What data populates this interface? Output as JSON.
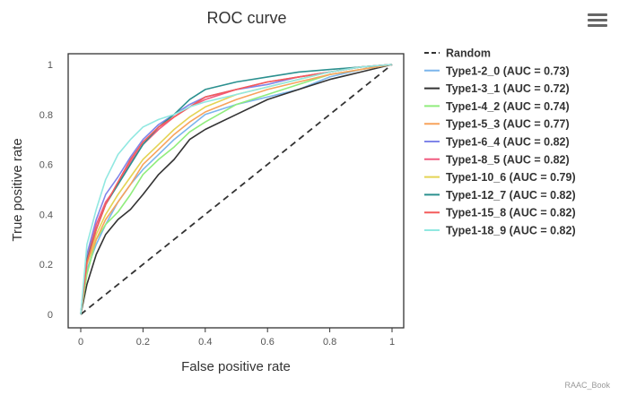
{
  "chart_data": {
    "type": "line",
    "title": "ROC curve",
    "xlabel": "False positive rate",
    "ylabel": "True positive rate",
    "xlim": [
      0,
      1
    ],
    "ylim": [
      0,
      1
    ],
    "xticks": [
      "0",
      "0.2",
      "0.4",
      "0.6",
      "0.8",
      "1"
    ],
    "yticks": [
      "0",
      "0.2",
      "0.4",
      "0.6",
      "0.8",
      "1"
    ],
    "legend_position": "right",
    "series": [
      {
        "name": "Random",
        "color": "#333333",
        "dash": true,
        "points": [
          [
            0,
            0
          ],
          [
            1,
            1
          ]
        ]
      },
      {
        "name": "Type1-2_0 (AUC = 0.73)",
        "color": "#7cb5ec",
        "points": [
          [
            0,
            0
          ],
          [
            0.02,
            0.18
          ],
          [
            0.05,
            0.28
          ],
          [
            0.08,
            0.36
          ],
          [
            0.12,
            0.45
          ],
          [
            0.16,
            0.52
          ],
          [
            0.2,
            0.58
          ],
          [
            0.25,
            0.64
          ],
          [
            0.3,
            0.7
          ],
          [
            0.35,
            0.75
          ],
          [
            0.4,
            0.8
          ],
          [
            0.5,
            0.84
          ],
          [
            0.6,
            0.87
          ],
          [
            0.7,
            0.9
          ],
          [
            0.8,
            0.95
          ],
          [
            0.9,
            0.98
          ],
          [
            1,
            1
          ]
        ]
      },
      {
        "name": "Type1-3_1 (AUC = 0.72)",
        "color": "#333333",
        "points": [
          [
            0,
            0
          ],
          [
            0.02,
            0.12
          ],
          [
            0.05,
            0.24
          ],
          [
            0.08,
            0.32
          ],
          [
            0.12,
            0.38
          ],
          [
            0.16,
            0.42
          ],
          [
            0.2,
            0.48
          ],
          [
            0.25,
            0.56
          ],
          [
            0.3,
            0.62
          ],
          [
            0.35,
            0.7
          ],
          [
            0.4,
            0.74
          ],
          [
            0.5,
            0.8
          ],
          [
            0.6,
            0.86
          ],
          [
            0.7,
            0.9
          ],
          [
            0.8,
            0.94
          ],
          [
            0.9,
            0.97
          ],
          [
            1,
            1
          ]
        ]
      },
      {
        "name": "Type1-4_2 (AUC = 0.74)",
        "color": "#90ed7d",
        "points": [
          [
            0,
            0
          ],
          [
            0.02,
            0.16
          ],
          [
            0.05,
            0.3
          ],
          [
            0.08,
            0.36
          ],
          [
            0.12,
            0.41
          ],
          [
            0.16,
            0.48
          ],
          [
            0.2,
            0.56
          ],
          [
            0.25,
            0.62
          ],
          [
            0.3,
            0.67
          ],
          [
            0.35,
            0.73
          ],
          [
            0.4,
            0.77
          ],
          [
            0.5,
            0.84
          ],
          [
            0.6,
            0.88
          ],
          [
            0.7,
            0.92
          ],
          [
            0.8,
            0.96
          ],
          [
            0.9,
            0.98
          ],
          [
            1,
            1
          ]
        ]
      },
      {
        "name": "Type1-5_3 (AUC = 0.77)",
        "color": "#f7a35c",
        "points": [
          [
            0,
            0
          ],
          [
            0.02,
            0.2
          ],
          [
            0.05,
            0.3
          ],
          [
            0.08,
            0.38
          ],
          [
            0.12,
            0.45
          ],
          [
            0.16,
            0.52
          ],
          [
            0.2,
            0.6
          ],
          [
            0.25,
            0.66
          ],
          [
            0.3,
            0.72
          ],
          [
            0.35,
            0.77
          ],
          [
            0.4,
            0.81
          ],
          [
            0.5,
            0.86
          ],
          [
            0.6,
            0.9
          ],
          [
            0.7,
            0.93
          ],
          [
            0.8,
            0.96
          ],
          [
            0.9,
            0.98
          ],
          [
            1,
            1
          ]
        ]
      },
      {
        "name": "Type1-6_4 (AUC = 0.82)",
        "color": "#8085e9",
        "points": [
          [
            0,
            0
          ],
          [
            0.02,
            0.24
          ],
          [
            0.05,
            0.38
          ],
          [
            0.08,
            0.48
          ],
          [
            0.12,
            0.55
          ],
          [
            0.16,
            0.63
          ],
          [
            0.2,
            0.7
          ],
          [
            0.25,
            0.76
          ],
          [
            0.3,
            0.8
          ],
          [
            0.35,
            0.84
          ],
          [
            0.4,
            0.87
          ],
          [
            0.5,
            0.9
          ],
          [
            0.6,
            0.92
          ],
          [
            0.7,
            0.95
          ],
          [
            0.8,
            0.97
          ],
          [
            0.9,
            0.99
          ],
          [
            1,
            1
          ]
        ]
      },
      {
        "name": "Type1-8_5 (AUC = 0.82)",
        "color": "#f15c80",
        "points": [
          [
            0,
            0
          ],
          [
            0.02,
            0.22
          ],
          [
            0.05,
            0.36
          ],
          [
            0.08,
            0.45
          ],
          [
            0.12,
            0.52
          ],
          [
            0.16,
            0.61
          ],
          [
            0.2,
            0.68
          ],
          [
            0.25,
            0.74
          ],
          [
            0.3,
            0.79
          ],
          [
            0.35,
            0.83
          ],
          [
            0.4,
            0.86
          ],
          [
            0.5,
            0.9
          ],
          [
            0.6,
            0.93
          ],
          [
            0.7,
            0.95
          ],
          [
            0.8,
            0.97
          ],
          [
            0.9,
            0.99
          ],
          [
            1,
            1
          ]
        ]
      },
      {
        "name": "Type1-10_6 (AUC = 0.79)",
        "color": "#e4d354",
        "points": [
          [
            0,
            0
          ],
          [
            0.02,
            0.2
          ],
          [
            0.05,
            0.32
          ],
          [
            0.08,
            0.4
          ],
          [
            0.12,
            0.48
          ],
          [
            0.16,
            0.55
          ],
          [
            0.2,
            0.62
          ],
          [
            0.25,
            0.68
          ],
          [
            0.3,
            0.74
          ],
          [
            0.35,
            0.79
          ],
          [
            0.4,
            0.83
          ],
          [
            0.5,
            0.88
          ],
          [
            0.6,
            0.91
          ],
          [
            0.7,
            0.94
          ],
          [
            0.8,
            0.97
          ],
          [
            0.9,
            0.99
          ],
          [
            1,
            1
          ]
        ]
      },
      {
        "name": "Type1-12_7 (AUC = 0.82)",
        "color": "#2b908f",
        "points": [
          [
            0,
            0
          ],
          [
            0.02,
            0.22
          ],
          [
            0.05,
            0.34
          ],
          [
            0.08,
            0.44
          ],
          [
            0.12,
            0.52
          ],
          [
            0.16,
            0.6
          ],
          [
            0.2,
            0.68
          ],
          [
            0.25,
            0.75
          ],
          [
            0.3,
            0.8
          ],
          [
            0.35,
            0.86
          ],
          [
            0.4,
            0.9
          ],
          [
            0.5,
            0.93
          ],
          [
            0.6,
            0.95
          ],
          [
            0.7,
            0.97
          ],
          [
            0.8,
            0.98
          ],
          [
            0.9,
            0.99
          ],
          [
            1,
            1
          ]
        ]
      },
      {
        "name": "Type1-15_8 (AUC = 0.82)",
        "color": "#f45b5b",
        "points": [
          [
            0,
            0
          ],
          [
            0.02,
            0.21
          ],
          [
            0.05,
            0.34
          ],
          [
            0.08,
            0.44
          ],
          [
            0.12,
            0.53
          ],
          [
            0.16,
            0.62
          ],
          [
            0.2,
            0.69
          ],
          [
            0.25,
            0.75
          ],
          [
            0.3,
            0.79
          ],
          [
            0.35,
            0.83
          ],
          [
            0.4,
            0.87
          ],
          [
            0.5,
            0.9
          ],
          [
            0.6,
            0.93
          ],
          [
            0.7,
            0.95
          ],
          [
            0.8,
            0.97
          ],
          [
            0.9,
            0.99
          ],
          [
            1,
            1
          ]
        ]
      },
      {
        "name": "Type1-18_9 (AUC = 0.82)",
        "color": "#91e8e1",
        "points": [
          [
            0,
            0
          ],
          [
            0.02,
            0.28
          ],
          [
            0.05,
            0.42
          ],
          [
            0.08,
            0.54
          ],
          [
            0.12,
            0.64
          ],
          [
            0.16,
            0.7
          ],
          [
            0.2,
            0.75
          ],
          [
            0.25,
            0.78
          ],
          [
            0.3,
            0.8
          ],
          [
            0.35,
            0.83
          ],
          [
            0.4,
            0.85
          ],
          [
            0.5,
            0.88
          ],
          [
            0.6,
            0.91
          ],
          [
            0.7,
            0.94
          ],
          [
            0.8,
            0.97
          ],
          [
            0.9,
            0.99
          ],
          [
            1,
            1
          ]
        ]
      }
    ]
  },
  "credits": "RAAC_Book"
}
